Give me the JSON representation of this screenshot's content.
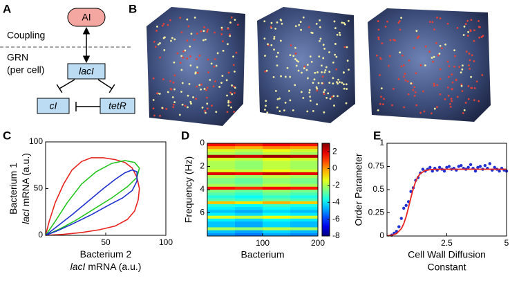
{
  "panel_labels": [
    "A",
    "B",
    "C",
    "D",
    "E"
  ],
  "diagram": {
    "nodes": [
      {
        "label": "AI"
      },
      {
        "label": "lacI"
      },
      {
        "label": "cI"
      },
      {
        "label": "tetR"
      }
    ],
    "labels": {
      "coupling": "Coupling",
      "grn": "GRN",
      "per_cell": "(per cell)"
    }
  },
  "chart_data": [
    {
      "type": "line",
      "xlim": [
        0,
        100
      ],
      "xticks": [
        50,
        100
      ],
      "ylim": [
        0,
        100
      ],
      "yticks": [
        0,
        50,
        100
      ],
      "xlabel": {
        "line1": "Bacterium 2",
        "gene": "lacI",
        "rest": "mRNA (a.u.)"
      },
      "ylabel": {
        "line1": "Bacterium 1",
        "gene": "lacI",
        "rest": "mRNA (a.u.)"
      },
      "series": [
        {
          "color": "#e8231e",
          "x": [
            0,
            3,
            8,
            15,
            22,
            30,
            38,
            48,
            58,
            66,
            72,
            76,
            78,
            77,
            74,
            68,
            58,
            45,
            30,
            15,
            0
          ],
          "values": [
            0,
            15,
            35,
            55,
            70,
            79,
            83,
            83,
            81,
            78,
            72,
            62,
            50,
            38,
            26,
            17,
            10,
            6,
            3,
            1,
            0
          ]
        },
        {
          "color": "#22c51e",
          "x": [
            0,
            8,
            18,
            30,
            42,
            55,
            66,
            74,
            78,
            76,
            68,
            55,
            40,
            25,
            12,
            0
          ],
          "values": [
            0,
            15,
            35,
            55,
            68,
            77,
            80,
            78,
            72,
            62,
            52,
            40,
            28,
            16,
            7,
            0
          ]
        },
        {
          "color": "#1f2fd0",
          "x": [
            0,
            10,
            22,
            35,
            48,
            58,
            66,
            72,
            76,
            76,
            72,
            64,
            52,
            38,
            22,
            10,
            0
          ],
          "values": [
            0,
            10,
            22,
            36,
            50,
            60,
            67,
            70,
            68,
            58,
            48,
            40,
            32,
            22,
            12,
            5,
            0
          ]
        }
      ]
    },
    {
      "type": "heatmap",
      "xlim": [
        0,
        200
      ],
      "xticks": [
        100,
        200
      ],
      "ylim": [
        8,
        0
      ],
      "yticks": [
        0,
        2,
        4,
        6
      ],
      "xlabel": "Bacterium",
      "ylabel": "Frequency (Hz)",
      "clim": [
        -8,
        3
      ],
      "cticks": [
        2,
        0,
        -2,
        -4,
        -6,
        -8
      ],
      "colormap": "jet",
      "x_bins": [
        0,
        50,
        100,
        150,
        200
      ],
      "y_bins": [
        0,
        0.25,
        0.5,
        0.75,
        1,
        1.25,
        1.5,
        1.75,
        2,
        2.25,
        2.5,
        2.75,
        3,
        3.25,
        3.5,
        3.75,
        4,
        4.25,
        4.5,
        4.75,
        5,
        5.25,
        5.5,
        5.75,
        6,
        6.25,
        6.5,
        6.75,
        7,
        7.25,
        7.5,
        7.75,
        8
      ],
      "values": [
        [
          1.5,
          1.2,
          1.7,
          1.4
        ],
        [
          0,
          -0.3,
          0.2,
          -0.1
        ],
        [
          -1.5,
          -1.8,
          -1.3,
          -1.6
        ],
        [
          -2,
          -2.3,
          -1.8,
          -2.1
        ],
        [
          2.5,
          2.2,
          2.7,
          2.4
        ],
        [
          -1.5,
          -1.8,
          -1.3,
          -1.6
        ],
        [
          -2,
          -2.3,
          -1.8,
          -2.1
        ],
        [
          -2,
          -2.3,
          -1.8,
          -2.1
        ],
        [
          -2,
          -2.3,
          -1.8,
          -2.1
        ],
        [
          -1.5,
          -1.8,
          -1.3,
          -1.6
        ],
        [
          2,
          1.7,
          2.2,
          1.9
        ],
        [
          -2,
          -2.3,
          -1.8,
          -2.1
        ],
        [
          -2.5,
          -2.8,
          -2.3,
          -2.6
        ],
        [
          -2.5,
          -2.8,
          -2.3,
          -2.6
        ],
        [
          -2,
          -2.3,
          -1.8,
          -2.1
        ],
        [
          1.5,
          1.2,
          1.7,
          1.4
        ],
        [
          -2.5,
          -2.8,
          -2.3,
          -2.6
        ],
        [
          -3,
          -3.3,
          -2.8,
          -3.1
        ],
        [
          -3.5,
          -3.8,
          -3.3,
          -3.6
        ],
        [
          -3,
          -3.3,
          -2.8,
          -3.1
        ],
        [
          -0.5,
          -0.8,
          -0.3,
          -0.6
        ],
        [
          -3.5,
          -3.8,
          -3.3,
          -3.6
        ],
        [
          -4,
          -4.3,
          -3.8,
          -4.1
        ],
        [
          -4.5,
          -4.8,
          -4.3,
          -4.6
        ],
        [
          -4,
          -4.3,
          -3.8,
          -4.1
        ],
        [
          -1.5,
          -1.8,
          -1.3,
          -1.6
        ],
        [
          -4,
          -4.3,
          -3.8,
          -4.1
        ],
        [
          -4.5,
          -4.8,
          -4.3,
          -4.6
        ],
        [
          -4.5,
          -4.8,
          -4.3,
          -4.6
        ],
        [
          -2,
          -2.3,
          -1.8,
          -2.1
        ],
        [
          -4.5,
          -4.8,
          -4.3,
          -4.6
        ],
        [
          -5,
          -5.3,
          -4.8,
          -5.1
        ]
      ]
    },
    {
      "type": "scatter",
      "xlim": [
        0,
        5
      ],
      "xticks": [
        2.5,
        5
      ],
      "ylim": [
        0,
        1
      ],
      "yticks": [
        0,
        0.25,
        0.5,
        0.75,
        1
      ],
      "xlabel": [
        "Cell Wall Diffusion",
        "Constant"
      ],
      "ylabel": "Order Parameter",
      "series": [
        {
          "type": "scatter",
          "color": "#1f2fd0",
          "x": [
            0.2,
            0.3,
            0.4,
            0.5,
            0.6,
            0.7,
            0.8,
            0.9,
            1.0,
            1.1,
            1.2,
            1.3,
            1.4,
            1.5,
            1.6,
            1.7,
            1.8,
            1.9,
            2.0,
            2.1,
            2.2,
            2.3,
            2.4,
            2.5,
            2.6,
            2.7,
            2.8,
            2.9,
            3.0,
            3.1,
            3.2,
            3.3,
            3.4,
            3.5,
            3.6,
            3.7,
            3.8,
            3.9,
            4.0,
            4.1,
            4.2,
            4.3,
            4.4,
            4.5,
            4.6,
            4.7,
            4.8,
            4.9,
            5.0
          ],
          "values": [
            0.01,
            0.03,
            0.05,
            0.1,
            0.19,
            0.3,
            0.33,
            0.37,
            0.48,
            0.52,
            0.6,
            0.63,
            0.68,
            0.72,
            0.7,
            0.72,
            0.74,
            0.7,
            0.73,
            0.71,
            0.74,
            0.72,
            0.7,
            0.74,
            0.75,
            0.72,
            0.73,
            0.71,
            0.75,
            0.76,
            0.73,
            0.72,
            0.74,
            0.77,
            0.73,
            0.7,
            0.74,
            0.75,
            0.72,
            0.76,
            0.73,
            0.78,
            0.71,
            0.74,
            0.72,
            0.7,
            0.73,
            0.71,
            0.7
          ]
        },
        {
          "type": "line",
          "color": "#e8231e",
          "x": [
            0,
            0.2,
            0.4,
            0.6,
            0.7,
            0.8,
            0.9,
            1.0,
            1.1,
            1.2,
            1.3,
            1.4,
            1.6,
            1.8,
            2.0,
            2.5,
            3,
            4,
            5
          ],
          "values": [
            0.002,
            0.008,
            0.026,
            0.079,
            0.131,
            0.208,
            0.306,
            0.414,
            0.512,
            0.589,
            0.642,
            0.675,
            0.706,
            0.716,
            0.719,
            0.72,
            0.72,
            0.72,
            0.72
          ]
        }
      ]
    }
  ]
}
